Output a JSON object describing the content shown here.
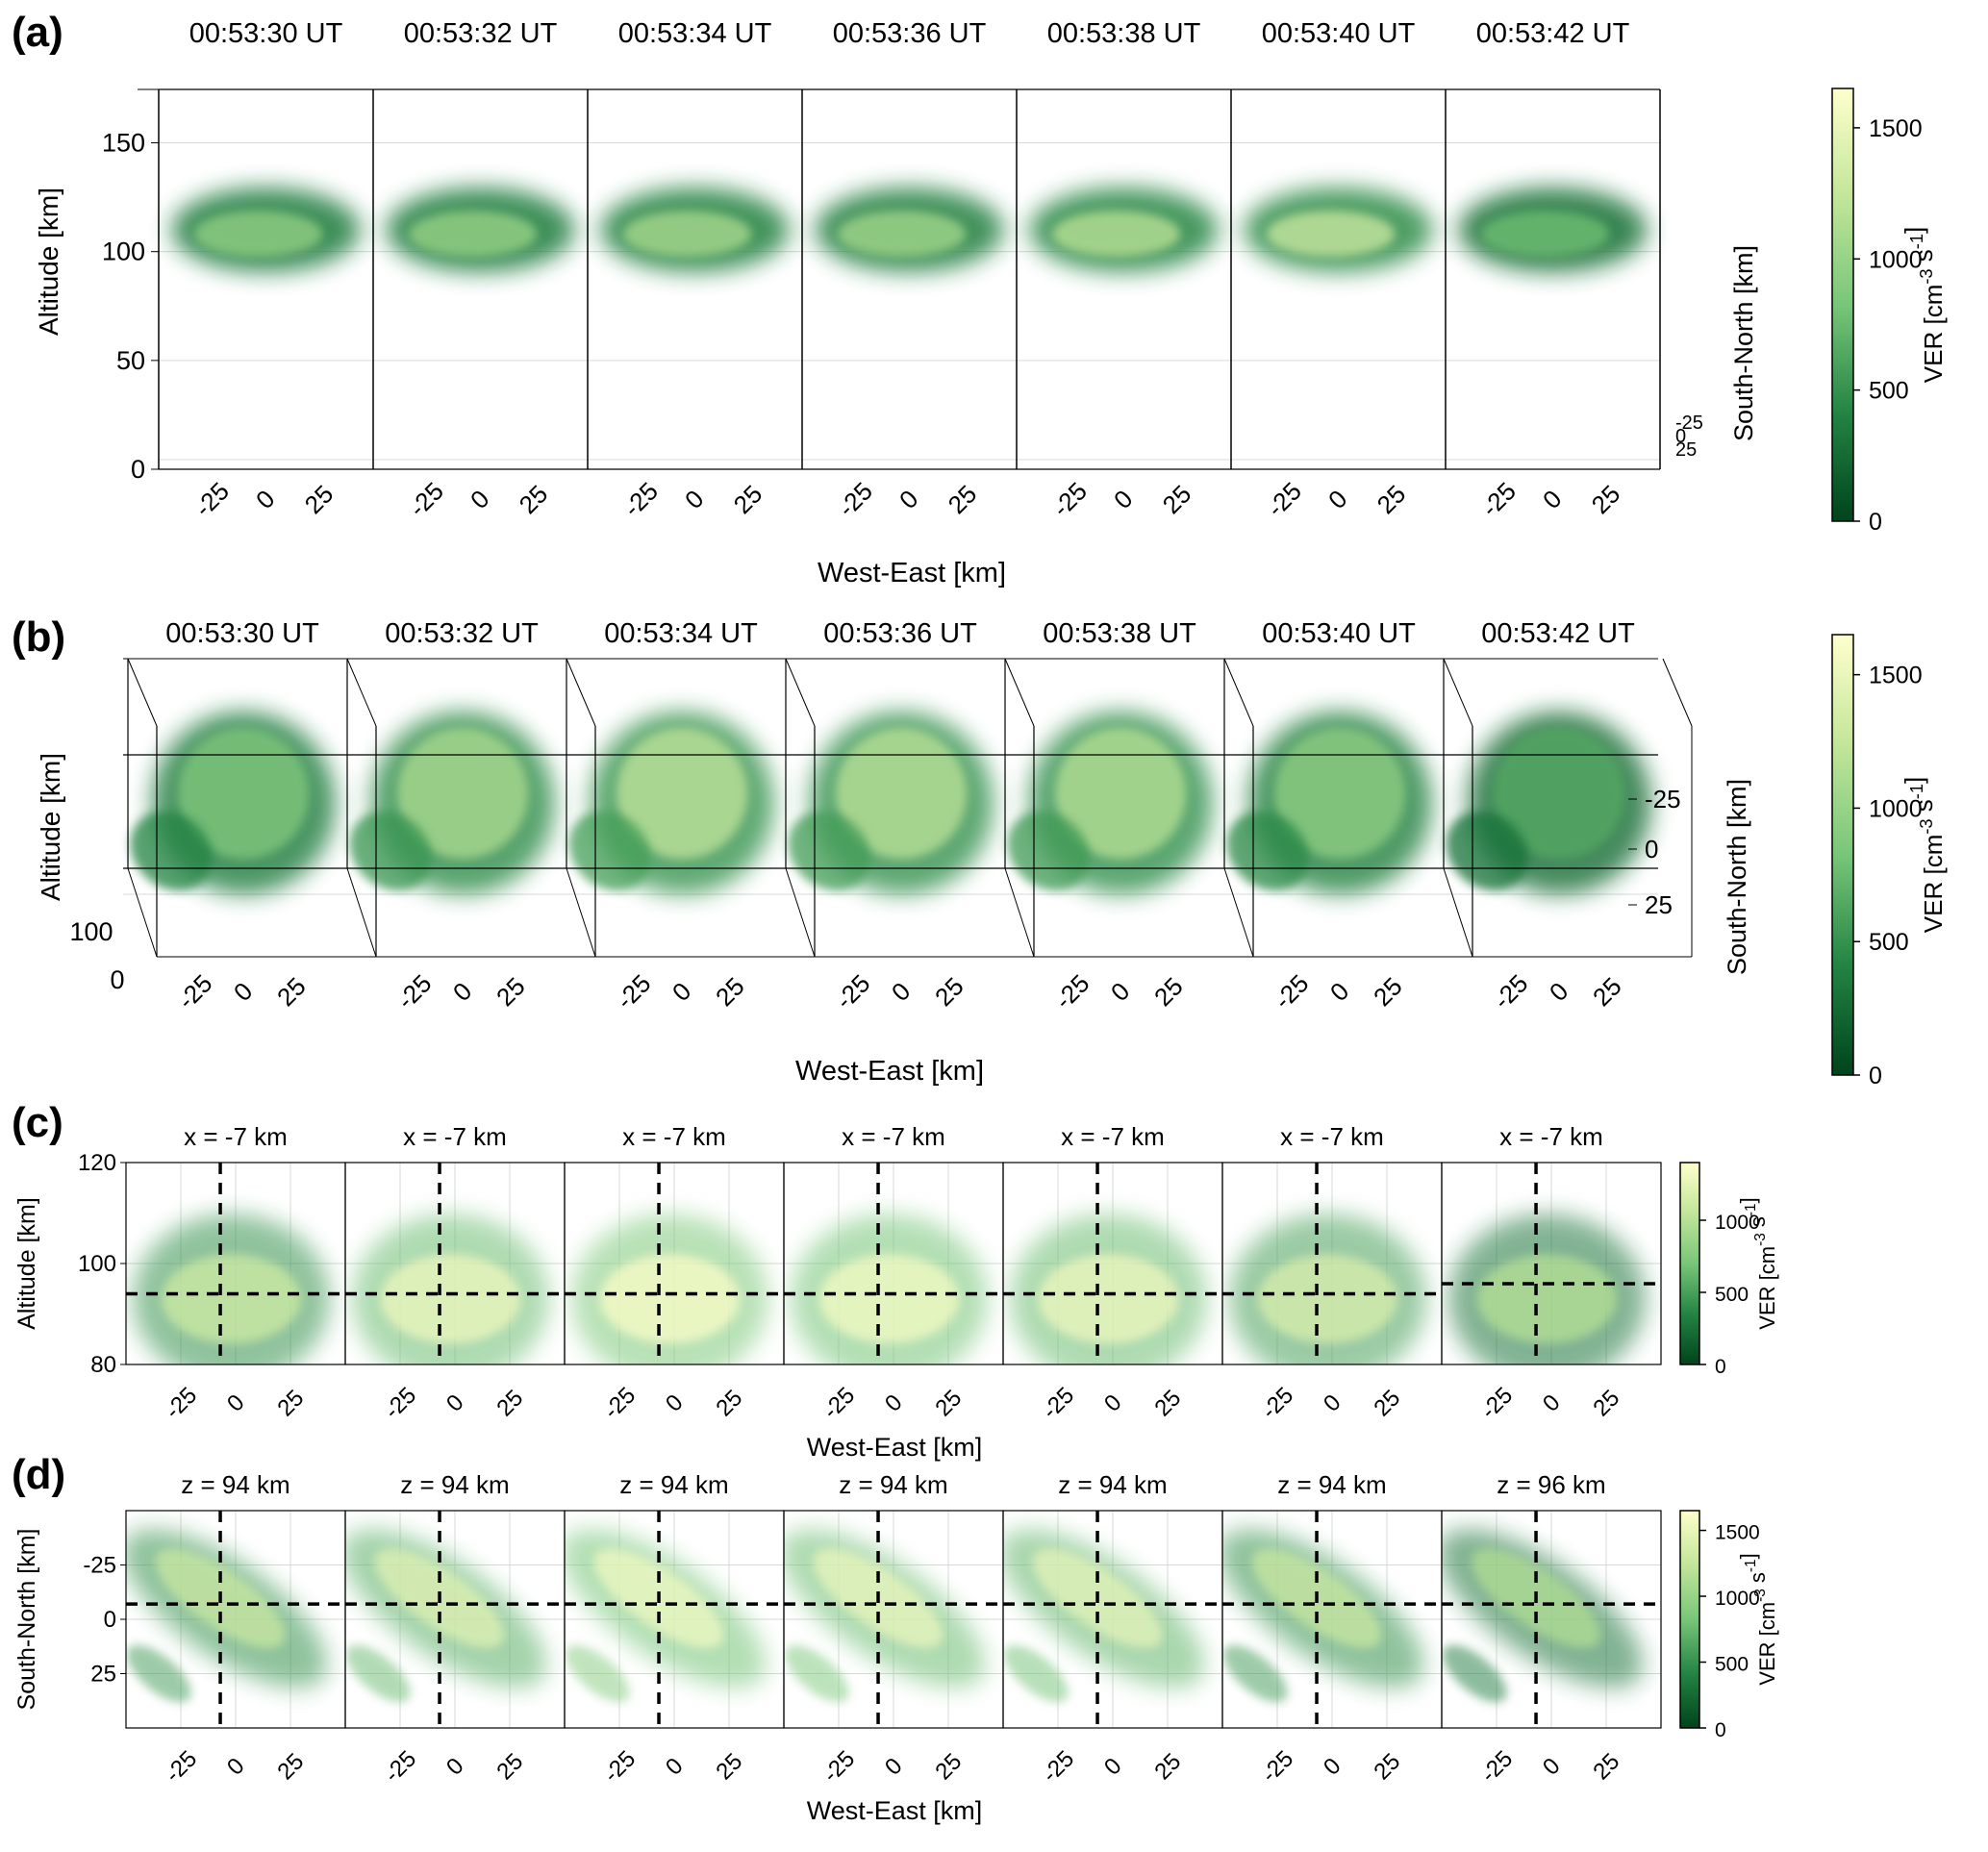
{
  "chart_data": [
    {
      "panel_label": "(a)",
      "type": "heatmap",
      "view": "3-D oblique",
      "frame_titles": [
        "00:53:30 UT",
        "00:53:32 UT",
        "00:53:34 UT",
        "00:53:36 UT",
        "00:53:38 UT",
        "00:53:40 UT",
        "00:53:42 UT"
      ],
      "x_ticks": [
        "-25",
        "0",
        "25"
      ],
      "y_ticks": [
        "0",
        "50",
        "100",
        "150"
      ],
      "depth_ticks": [
        "-25",
        "0",
        "25"
      ],
      "xlabel": "West-East [km]",
      "ylabel": "Altitude [km]",
      "zlabel": "South-North [km]",
      "ylim": [
        0,
        190
      ],
      "colorbar": {
        "label": "VER [cm<sup>-3</sup> s<sup>-1</sup>]",
        "ticks": [
          "0",
          "500",
          "1000",
          "1500"
        ],
        "range": [
          0,
          1650
        ]
      },
      "peak_relative": [
        0.6,
        0.62,
        0.68,
        0.66,
        0.74,
        0.8,
        0.48
      ],
      "emission_altitude_km": [
        94,
        130
      ]
    },
    {
      "panel_label": "(b)",
      "type": "heatmap",
      "view": "top-down oblique",
      "frame_titles": [
        "00:53:30 UT",
        "00:53:32 UT",
        "00:53:34 UT",
        "00:53:36 UT",
        "00:53:38 UT",
        "00:53:40 UT",
        "00:53:42 UT"
      ],
      "x_ticks": [
        "-25",
        "0",
        "25"
      ],
      "y_ticks": [
        "0",
        "100"
      ],
      "depth_ticks": [
        "-25",
        "0",
        "25"
      ],
      "xlabel": "West-East [km]",
      "ylabel": "Altitude [km]",
      "zlabel": "South-North [km]",
      "colorbar": {
        "label": "VER [cm<sup>-3</sup> s<sup>-1</sup>]",
        "ticks": [
          "0",
          "500",
          "1000",
          "1500"
        ],
        "range": [
          0,
          1650
        ]
      },
      "peak_relative": [
        0.55,
        0.7,
        0.78,
        0.76,
        0.74,
        0.6,
        0.4
      ]
    },
    {
      "panel_label": "(c)",
      "type": "heatmap",
      "slice": "West-East / Altitude",
      "frame_titles": [
        "x = -7 km",
        "x = -7 km",
        "x = -7 km",
        "x = -7 km",
        "x = -7 km",
        "x = -7 km",
        "x = -7 km"
      ],
      "x_ticks": [
        "-25",
        "0",
        "25"
      ],
      "y_ticks": [
        "80",
        "100",
        "120"
      ],
      "xlabel": "West-East [km]",
      "ylabel": "Altitude [km]",
      "xlim": [
        -50,
        50
      ],
      "ylim": [
        80,
        120
      ],
      "vertical_line_x_km": -7,
      "horizontal_line_alt_km": [
        94,
        94,
        94,
        94,
        94,
        94,
        96
      ],
      "colorbar": {
        "label": "VER [cm<sup>-3</sup> s<sup>-1</sup>]",
        "ticks": [
          "0",
          "500",
          "1000"
        ],
        "range": [
          0,
          1400
        ]
      },
      "peak_relative": [
        0.55,
        0.85,
        0.95,
        0.9,
        0.85,
        0.65,
        0.35
      ]
    },
    {
      "panel_label": "(d)",
      "type": "heatmap",
      "slice": "West-East / South-North",
      "frame_titles": [
        "z = 94 km",
        "z = 94 km",
        "z = 94 km",
        "z = 94 km",
        "z = 94 km",
        "z = 94 km",
        "z = 96 km"
      ],
      "x_ticks": [
        "-25",
        "0",
        "25"
      ],
      "y_ticks": [
        "-25",
        "0",
        "25"
      ],
      "xlabel": "West-East [km]",
      "ylabel": "South-North [km]",
      "xlim": [
        -50,
        50
      ],
      "ylim": [
        -50,
        50
      ],
      "vertical_line_x_km": -7,
      "horizontal_line_y_km": -7,
      "colorbar": {
        "label": "VER [cm<sup>-3</sup> s<sup>-1</sup>]",
        "ticks": [
          "0",
          "500",
          "1000",
          "1500"
        ],
        "range": [
          0,
          1650
        ]
      },
      "peak_relative": [
        0.55,
        0.75,
        0.9,
        0.85,
        0.8,
        0.55,
        0.35
      ]
    }
  ],
  "colors": {
    "cmap": [
      "#00441b",
      "#238443",
      "#78c679",
      "#c2e699",
      "#ffffcc"
    ],
    "axis": "#000000",
    "grid": "#d9d9d9",
    "dashed_line": "#000000"
  }
}
